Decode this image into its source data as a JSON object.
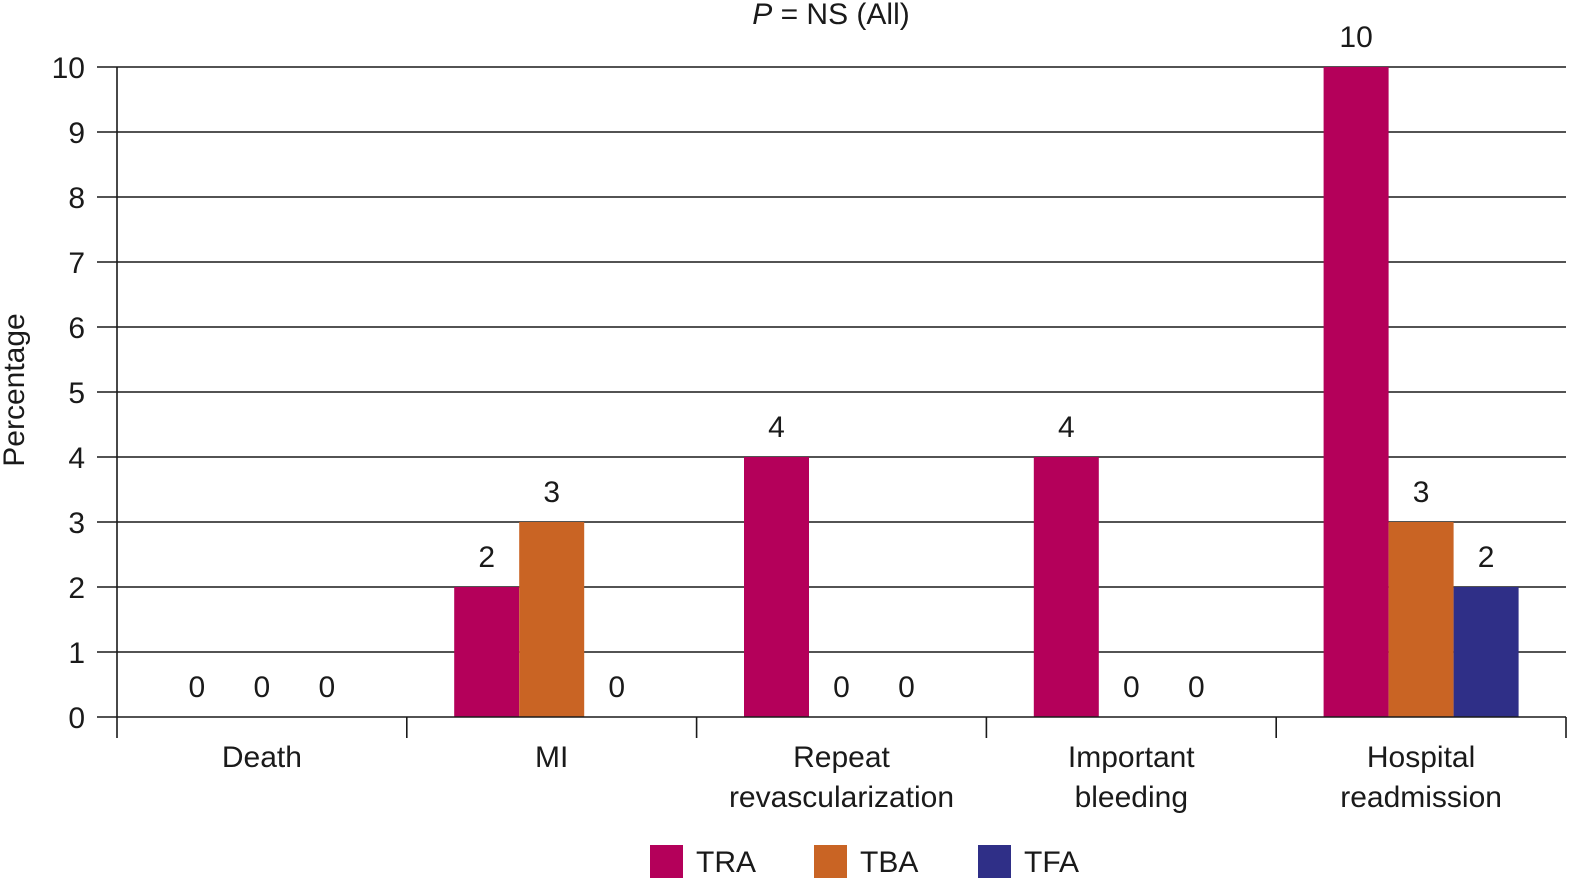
{
  "chart_data": {
    "type": "bar",
    "title_italic": "P",
    "title_rest": " = NS (All)",
    "ylabel": "Percentage",
    "xlabel": "",
    "ylim": [
      0,
      10
    ],
    "yticks": [
      "0",
      "1",
      "2",
      "3",
      "4",
      "5",
      "6",
      "7",
      "8",
      "9",
      "10"
    ],
    "grid": true,
    "legend_position": "bottom-center",
    "categories": [
      [
        "Death"
      ],
      [
        "MI"
      ],
      [
        "Repeat",
        "revascularization"
      ],
      [
        "Important",
        "bleeding"
      ],
      [
        "Hospital",
        "readmission"
      ]
    ],
    "series": [
      {
        "name": "TRA",
        "color": "#B4005A",
        "values": [
          0,
          2,
          4,
          4,
          10
        ]
      },
      {
        "name": "TBA",
        "color": "#C96424",
        "values": [
          0,
          3,
          0,
          0,
          3
        ]
      },
      {
        "name": "TFA",
        "color": "#2F2F87",
        "values": [
          0,
          0,
          0,
          0,
          2
        ]
      }
    ]
  }
}
